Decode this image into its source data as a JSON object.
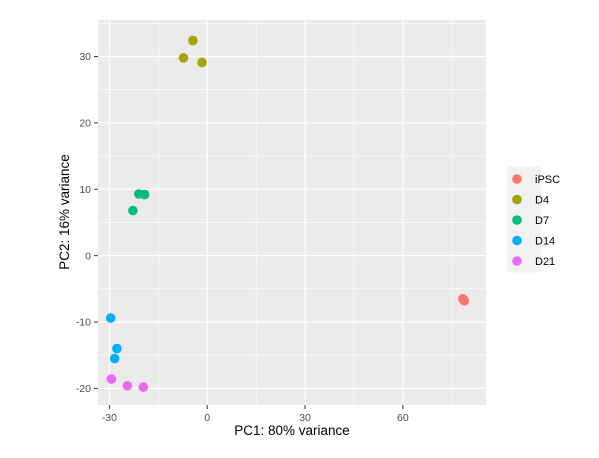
{
  "chart_data": {
    "type": "scatter",
    "title": "",
    "xlabel": "PC1: 80% variance",
    "ylabel": "PC2: 16% variance",
    "xlim": [
      -33.5,
      85.5
    ],
    "ylim": [
      -22.5,
      35.5
    ],
    "x_ticks": [
      -30,
      0,
      30,
      60
    ],
    "x_tick_labels": [
      "-30",
      "0",
      "30",
      "60"
    ],
    "y_ticks": [
      -20,
      -10,
      0,
      10,
      20,
      30
    ],
    "y_tick_labels": [
      "-20",
      "-10",
      "0",
      "10",
      "20",
      "30"
    ],
    "grid": true,
    "panel_background": "#ebebeb",
    "legend_position": "right",
    "series": [
      {
        "name": "iPSC",
        "color": "#f8766d",
        "points": [
          [
            78.4,
            -6.5
          ],
          [
            78.9,
            -6.8
          ],
          [
            78.6,
            -6.6
          ]
        ]
      },
      {
        "name": "D4",
        "color": "#a3a500",
        "points": [
          [
            -4.4,
            32.4
          ],
          [
            -7.3,
            29.8
          ],
          [
            -1.6,
            29.1
          ]
        ]
      },
      {
        "name": "D7",
        "color": "#00bf7d",
        "points": [
          [
            -21.0,
            9.3
          ],
          [
            -19.2,
            9.2
          ],
          [
            -22.8,
            6.8
          ]
        ]
      },
      {
        "name": "D14",
        "color": "#00b0f6",
        "points": [
          [
            -29.6,
            -9.4
          ],
          [
            -27.7,
            -14.0
          ],
          [
            -28.4,
            -15.5
          ]
        ]
      },
      {
        "name": "D21",
        "color": "#e76bf3",
        "points": [
          [
            -29.4,
            -18.6
          ],
          [
            -24.5,
            -19.6
          ],
          [
            -19.6,
            -19.8
          ]
        ]
      }
    ]
  }
}
